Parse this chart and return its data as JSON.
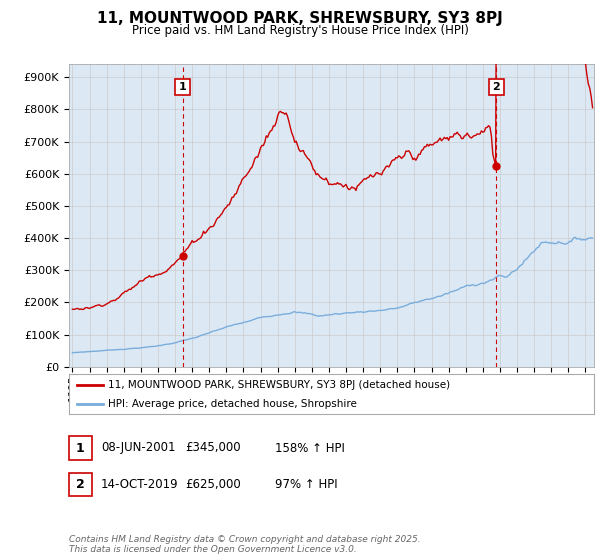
{
  "title": "11, MOUNTWOOD PARK, SHREWSBURY, SY3 8PJ",
  "subtitle": "Price paid vs. HM Land Registry's House Price Index (HPI)",
  "ylabel_ticks": [
    "£0",
    "£100K",
    "£200K",
    "£300K",
    "£400K",
    "£500K",
    "£600K",
    "£700K",
    "£800K",
    "£900K"
  ],
  "ytick_values": [
    0,
    100000,
    200000,
    300000,
    400000,
    500000,
    600000,
    700000,
    800000,
    900000
  ],
  "ylim": [
    0,
    940000
  ],
  "xlim_start": 1994.8,
  "xlim_end": 2025.5,
  "sale1": {
    "date": 2001.44,
    "price": 345000,
    "label": "1",
    "date_str": "08-JUN-2001",
    "price_str": "£345,000",
    "hpi_str": "158% ↑ HPI"
  },
  "sale2": {
    "date": 2019.79,
    "price": 625000,
    "label": "2",
    "date_str": "14-OCT-2019",
    "price_str": "£625,000",
    "hpi_str": "97% ↑ HPI"
  },
  "legend_line1": "11, MOUNTWOOD PARK, SHREWSBURY, SY3 8PJ (detached house)",
  "legend_line2": "HPI: Average price, detached house, Shropshire",
  "footer": "Contains HM Land Registry data © Crown copyright and database right 2025.\nThis data is licensed under the Open Government Licence v3.0.",
  "red_color": "#cc0000",
  "blue_color": "#7aaddc",
  "grid_color": "#cccccc",
  "background_color": "#ffffff",
  "plot_bg_color": "#dce9f5"
}
